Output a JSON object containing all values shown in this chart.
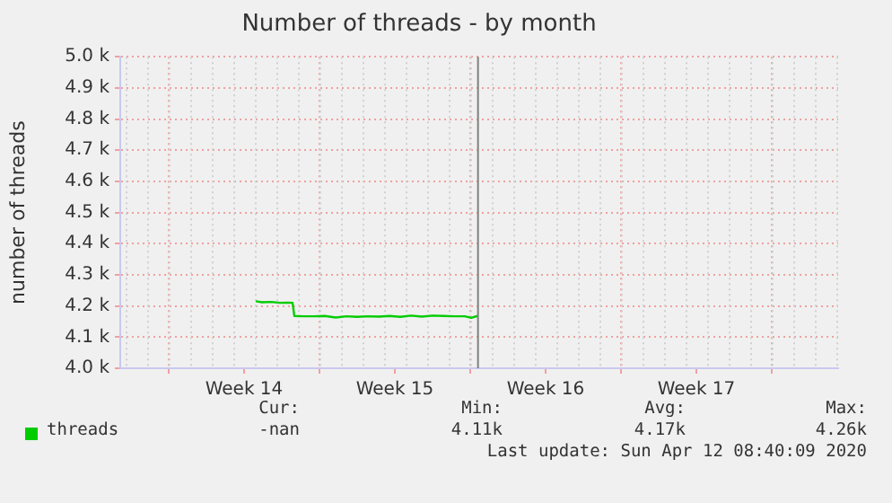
{
  "chart_data": {
    "type": "line",
    "title": "Number of threads - by month",
    "ylabel": "number of threads",
    "xlim": [
      "2020-03-26T18:00",
      "2020-04-29T02:00"
    ],
    "xticks": [
      {
        "value": "2020-03-29",
        "label": null
      },
      {
        "value": "2020-04-01T12:00",
        "label": "Week 14"
      },
      {
        "value": "2020-04-05",
        "label": null
      },
      {
        "value": "2020-04-08T12:00",
        "label": "Week 15"
      },
      {
        "value": "2020-04-12",
        "label": null
      },
      {
        "value": "2020-04-15T12:00",
        "label": "Week 16"
      },
      {
        "value": "2020-04-19",
        "label": null
      },
      {
        "value": "2020-04-22T12:00",
        "label": "Week 17"
      },
      {
        "value": "2020-04-26",
        "label": null
      }
    ],
    "ylim": [
      4000,
      5000
    ],
    "yticks": [
      {
        "value": 4000,
        "label": "4.0 k"
      },
      {
        "value": 4100,
        "label": "4.1 k"
      },
      {
        "value": 4200,
        "label": "4.2 k"
      },
      {
        "value": 4300,
        "label": "4.3 k"
      },
      {
        "value": 4400,
        "label": "4.4 k"
      },
      {
        "value": 4500,
        "label": "4.5 k"
      },
      {
        "value": 4600,
        "label": "4.6 k"
      },
      {
        "value": 4700,
        "label": "4.7 k"
      },
      {
        "value": 4800,
        "label": "4.8 k"
      },
      {
        "value": 4900,
        "label": "4.9 k"
      },
      {
        "value": 5000,
        "label": "5.0 k"
      }
    ],
    "x": [
      "2020-04-02T01:00",
      "2020-04-02T08:00",
      "2020-04-02T18:00",
      "2020-04-03T04:00",
      "2020-04-03T13:00",
      "2020-04-03T18:00",
      "2020-04-03T20:00",
      "2020-04-04T06:00",
      "2020-04-04T18:00",
      "2020-04-05T06:00",
      "2020-04-05T18:00",
      "2020-04-06T06:00",
      "2020-04-06T18:00",
      "2020-04-07T06:00",
      "2020-04-07T18:00",
      "2020-04-08T06:00",
      "2020-04-08T18:00",
      "2020-04-09T06:00",
      "2020-04-09T18:00",
      "2020-04-10T06:00",
      "2020-04-10T18:00",
      "2020-04-11T06:00",
      "2020-04-11T18:00",
      "2020-04-12T01:00",
      "2020-04-12T08:00"
    ],
    "series": [
      {
        "name": "threads",
        "color": "#00cc00",
        "values": [
          4215,
          4212,
          4213,
          4210,
          4211,
          4210,
          4168,
          4167,
          4167,
          4168,
          4163,
          4167,
          4165,
          4167,
          4166,
          4168,
          4165,
          4169,
          4166,
          4169,
          4168,
          4167,
          4167,
          4162,
          4168
        ]
      }
    ],
    "ref_lines": [
      {
        "axis": "x",
        "value": "2020-04-12T08:40",
        "color": "#808080"
      }
    ],
    "grid": true,
    "legend": "bottom left",
    "marker": "none",
    "line_style": "solid",
    "annotations": [
      "Cur:",
      "Min:",
      "Avg:",
      "Max:",
      "-nan",
      "4.11k",
      "4.17k",
      "4.26k",
      "Last update: Sun Apr 12 08:40:09 2020"
    ]
  }
}
